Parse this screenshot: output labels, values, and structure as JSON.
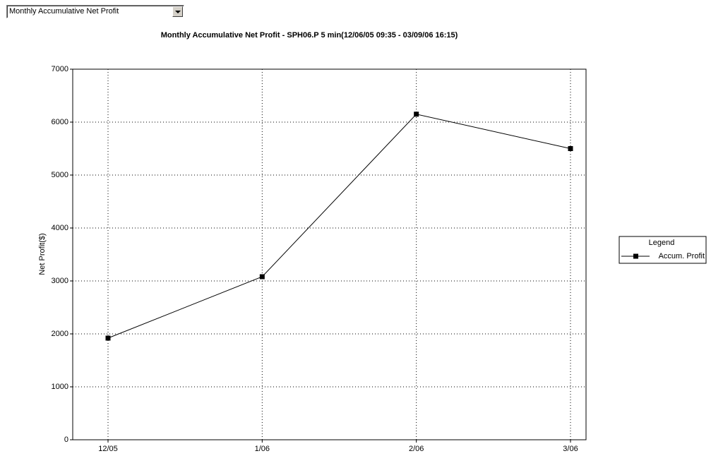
{
  "dropdown": {
    "selected": "Monthly Accumulative Net Profit"
  },
  "chart_data": {
    "type": "line",
    "title": "Monthly Accumulative Net Profit - SPH06.P 5 min(12/06/05 09:35 - 03/09/06 16:15)",
    "y_label": "Net Profit($)",
    "categories": [
      "12/05",
      "1/06",
      "2/06",
      "3/06"
    ],
    "series": [
      {
        "name": "Accum. Profit",
        "color": "#000000",
        "values": [
          1920,
          3080,
          6150,
          5500
        ]
      }
    ],
    "ylim": [
      0,
      7000
    ],
    "yticks": [
      0,
      1000,
      2000,
      3000,
      4000,
      5000,
      6000,
      7000
    ],
    "grid": true,
    "legend_title": "Legend",
    "legend_position": "right"
  }
}
